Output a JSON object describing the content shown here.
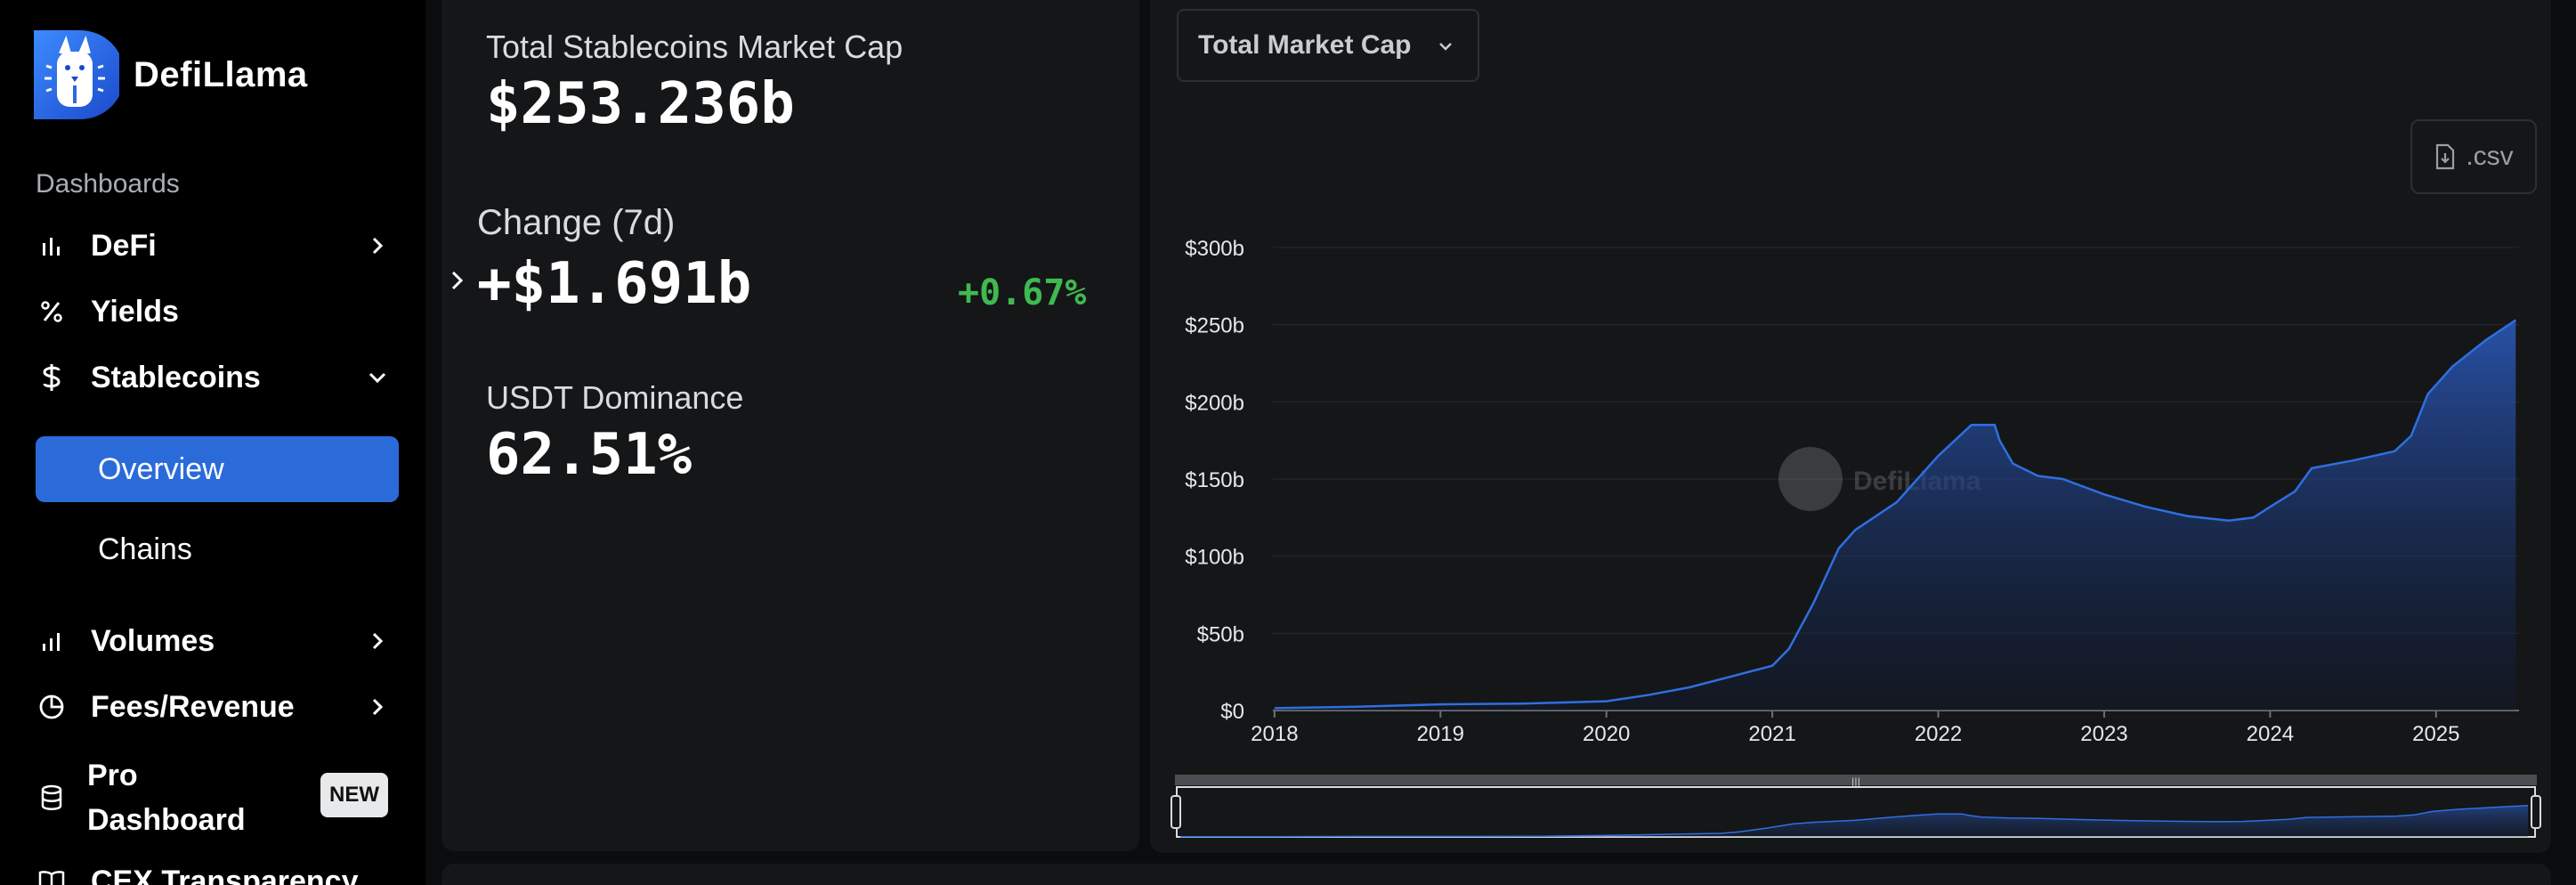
{
  "brand": {
    "name": "DefiLlama"
  },
  "sidebar": {
    "section_label": "Dashboards",
    "items": [
      {
        "label": "DeFi",
        "icon": "bar-chart-icon"
      },
      {
        "label": "Yields",
        "icon": "percent-icon"
      },
      {
        "label": "Stablecoins",
        "icon": "dollar-icon"
      },
      {
        "label": "Volumes",
        "icon": "volume-bars-icon"
      },
      {
        "label": "Fees/Revenue",
        "icon": "pie-icon"
      },
      {
        "label": "Pro Dashboard",
        "label_line1": "Pro",
        "label_line2": "Dashboard",
        "icon": "database-icon",
        "badge": "NEW"
      },
      {
        "label": "CEX Transparency",
        "icon": "book-icon"
      }
    ],
    "sub_items": [
      {
        "label": "Overview",
        "active": true
      },
      {
        "label": "Chains",
        "active": false
      }
    ]
  },
  "stats": {
    "market_cap_label": "Total Stablecoins Market Cap",
    "market_cap_value": "$253.236b",
    "change_label": "Change (7d)",
    "change_value": "+$1.691b",
    "change_percent": "+0.67%",
    "dominance_label": "USDT Dominance",
    "dominance_value": "62.51%"
  },
  "chart": {
    "selector_label": "Total Market Cap",
    "csv_label": ".csv",
    "watermark": "DefiLlama",
    "accent": "#2f6fe0"
  },
  "chart_data": {
    "type": "area",
    "title": "",
    "xlabel": "",
    "ylabel": "",
    "ylim": [
      0,
      300
    ],
    "y_ticks": [
      "$0",
      "$50b",
      "$100b",
      "$150b",
      "$200b",
      "$250b",
      "$300b"
    ],
    "x_ticks": [
      "2018",
      "2019",
      "2020",
      "2021",
      "2022",
      "2023",
      "2024",
      "2025"
    ],
    "unit": "billions USD",
    "series": [
      {
        "x": [
          2018.0,
          2018.5,
          2019.0,
          2019.5,
          2020.0,
          2020.25,
          2020.5,
          2020.75,
          2021.0,
          2021.1,
          2021.25,
          2021.4,
          2021.5,
          2021.75,
          2022.0,
          2022.2,
          2022.34,
          2022.37,
          2022.45,
          2022.6,
          2022.75,
          2023.0,
          2023.25,
          2023.5,
          2023.75,
          2023.9,
          2024.0,
          2024.15,
          2024.25,
          2024.5,
          2024.75,
          2024.85,
          2024.95,
          2025.1,
          2025.3,
          2025.48
        ],
        "y": [
          1.5,
          2.5,
          4,
          4.5,
          6,
          10,
          15,
          22,
          29,
          40,
          70,
          105,
          117,
          135,
          165,
          185,
          185,
          175,
          160,
          152,
          150,
          140,
          132,
          126,
          123,
          125,
          132,
          142,
          157,
          162,
          168,
          178,
          205,
          223,
          240,
          253
        ]
      }
    ]
  }
}
